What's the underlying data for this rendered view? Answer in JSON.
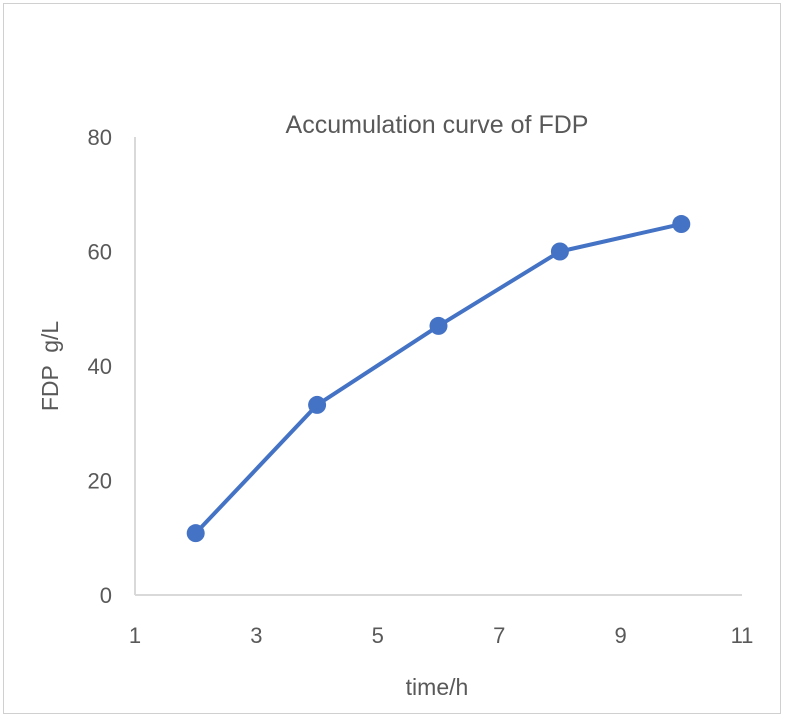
{
  "chart_data": {
    "type": "line",
    "title": "Accumulation curve of FDP",
    "xlabel": "time/h",
    "ylabel": "FDP  g/L",
    "xlim": [
      1,
      11
    ],
    "ylim": [
      0,
      80
    ],
    "xticks": [
      1,
      3,
      5,
      7,
      9,
      11
    ],
    "yticks": [
      0,
      20,
      40,
      60,
      80
    ],
    "grid": false,
    "legend": "none",
    "series": [
      {
        "x": [
          2,
          4,
          6,
          8,
          10
        ],
        "y": [
          10.8,
          33.2,
          47.0,
          60.0,
          64.8
        ],
        "color": "#4472C4",
        "markers": true
      }
    ]
  }
}
